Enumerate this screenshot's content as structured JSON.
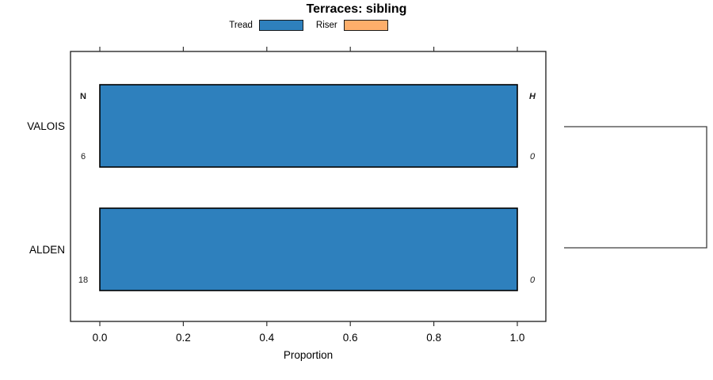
{
  "chart_data": {
    "type": "bar",
    "orientation": "horizontal",
    "stacked": true,
    "title": "Terraces: sibling",
    "xlabel": "Proportion",
    "xlim": [
      0,
      1
    ],
    "xticks": [
      {
        "value": 0.0,
        "label": "0.0"
      },
      {
        "value": 0.2,
        "label": "0.2"
      },
      {
        "value": 0.4,
        "label": "0.4"
      },
      {
        "value": 0.6,
        "label": "0.6"
      },
      {
        "value": 0.8,
        "label": "0.8"
      },
      {
        "value": 1.0,
        "label": "1.0"
      }
    ],
    "categories": [
      "VALOIS",
      "ALDEN"
    ],
    "series": [
      {
        "name": "Tread",
        "color": "#2e80bd",
        "values": [
          1.0,
          1.0
        ]
      },
      {
        "name": "Riser",
        "color": "#fdae6b",
        "values": [
          0.0,
          0.0
        ]
      }
    ],
    "legend": {
      "position": "top",
      "items": [
        {
          "label": "Tread",
          "color": "#2e80bd"
        },
        {
          "label": "Riser",
          "color": "#fdae6b"
        }
      ]
    },
    "annotations": [
      {
        "row": "VALOIS",
        "position": "left-top",
        "text": "N",
        "style": "bold"
      },
      {
        "row": "VALOIS",
        "position": "left-bottom",
        "text": "6",
        "style": "normal"
      },
      {
        "row": "VALOIS",
        "position": "right-top",
        "text": "H",
        "style": "bold-italic"
      },
      {
        "row": "VALOIS",
        "position": "right-bottom",
        "text": "0",
        "style": "italic"
      },
      {
        "row": "ALDEN",
        "position": "left-bottom",
        "text": "18",
        "style": "normal"
      },
      {
        "row": "ALDEN",
        "position": "right-bottom",
        "text": "0",
        "style": "italic"
      }
    ],
    "dendrogram": {
      "links": [
        {
          "rows": [
            "VALOIS",
            "ALDEN"
          ]
        }
      ]
    },
    "colors": {
      "bar_stroke": "#000000",
      "frame_stroke": "#1a1a1a",
      "tick_stroke": "#333333",
      "dendro_stroke": "#3d3d3d",
      "text": "#000000",
      "annotation_text": "#1a1a1a"
    },
    "grid": false
  }
}
